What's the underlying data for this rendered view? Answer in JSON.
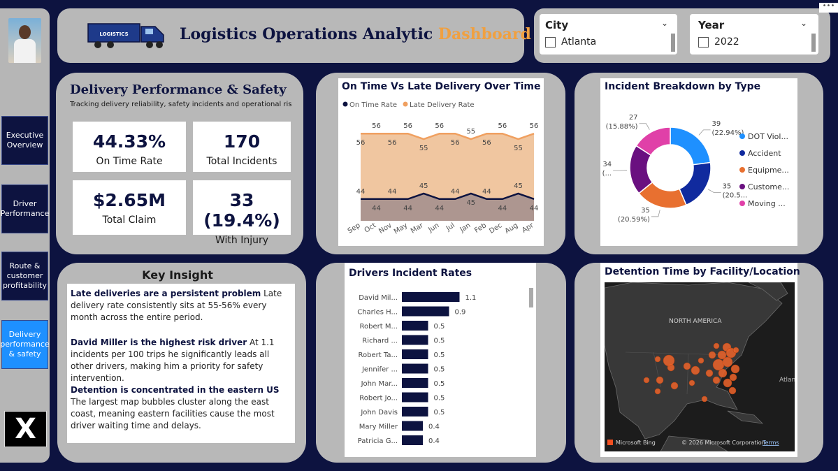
{
  "nav": {
    "items": [
      {
        "label": "Executive Overview",
        "active": false
      },
      {
        "label": "Driver Performance",
        "active": false
      },
      {
        "label": "Route & customer profitability",
        "active": false
      },
      {
        "label": "Delivery performance & safety",
        "active": true
      }
    ],
    "x_logo": "X"
  },
  "header": {
    "truck_text": "LOGISTICS",
    "title_main": "Logistics Operations Analytic",
    "title_accent": "Dashboard",
    "accent_color": "#f0a040"
  },
  "filters": {
    "city": {
      "label": "City",
      "option": "Atlanta"
    },
    "year": {
      "label": "Year",
      "option": "2022"
    }
  },
  "overview": {
    "title": "Delivery Performance & Safety",
    "subtitle": "Tracking delivery reliability, safety incidents and operational ris",
    "kpis": [
      {
        "value": "44.33%",
        "label": "On Time Rate"
      },
      {
        "value": "170",
        "label": "Total Incidents"
      },
      {
        "value": "$2.65M",
        "label": "Total Claim"
      },
      {
        "value": "33 (19.4%)",
        "label": "With Injury"
      }
    ]
  },
  "insights": {
    "title": "Key Insight",
    "items": [
      {
        "bold": "Late deliveries are a persistent problem",
        "text": " Late delivery rate consistently sits at 55-56% every month across the entire period."
      },
      {
        "bold": "David Miller is the highest risk driver",
        "text": " At 1.1 incidents per 100 trips he significantly leads all other drivers, making him a priority for safety intervention."
      },
      {
        "bold": "Detention is concentrated in the eastern US",
        "text": " The largest map bubbles cluster along the east coast, meaning eastern facilities cause the most driver waiting time and delays."
      }
    ]
  },
  "chart_data": [
    {
      "type": "area",
      "title": "On Time Vs Late Delivery Over Time",
      "categories": [
        "Sep",
        "Oct",
        "Nov",
        "May",
        "Mar",
        "Jun",
        "Jul",
        "Jan",
        "Feb",
        "Dec",
        "Aug",
        "Apr"
      ],
      "series": [
        {
          "name": "On Time Rate",
          "color": "#0d1340",
          "values": [
            44,
            44,
            44,
            44,
            45,
            44,
            44,
            45,
            44,
            44,
            45,
            44
          ]
        },
        {
          "name": "Late Delivery Rate",
          "color": "#f0a060",
          "values": [
            56,
            56,
            56,
            56,
            55,
            56,
            56,
            55,
            56,
            56,
            55,
            56
          ]
        }
      ],
      "ylim": [
        0,
        70
      ],
      "legend": "top"
    },
    {
      "type": "pie",
      "title": "Incident Breakdown by Type",
      "categories": [
        "DOT Viol...",
        "Accident",
        "Equipme...",
        "Custome...",
        "Moving ..."
      ],
      "values": [
        39,
        35,
        35,
        34,
        27
      ],
      "colors": [
        "#1e90ff",
        "#102a9e",
        "#e87030",
        "#6a1080",
        "#e040a8"
      ],
      "slice_labels": [
        "39\n(22.94%)",
        "35\n(20.5...",
        "35\n(20.59%)",
        "34\n(...",
        "27\n(15.88%)"
      ],
      "legend": "right"
    },
    {
      "type": "bar",
      "title": "Drivers Incident Rates",
      "categories": [
        "David Mil...",
        "Charles H...",
        "Robert M...",
        "Richard ...",
        "Robert Ta...",
        "Jennifer ...",
        "John Mar...",
        "Robert Jo...",
        "John Davis",
        "Mary Miller",
        "Patricia G..."
      ],
      "values": [
        1.1,
        0.9,
        0.5,
        0.5,
        0.5,
        0.5,
        0.5,
        0.5,
        0.5,
        0.4,
        0.4
      ],
      "value_labels": [
        "1.1",
        "0.9",
        "0.5",
        "0.5",
        "0.5",
        "0.5",
        "0.5",
        "0.5",
        "0.5",
        "0.4",
        "0.4"
      ],
      "color": "#0d1340",
      "xlim": [
        0,
        1.2
      ]
    }
  ],
  "map": {
    "title": "Detention Time by Facility/Location",
    "region_label": "NORTH AMERICA",
    "ocean_label": "Atlan",
    "credit_brand": "Microsoft Bing",
    "credit_copy": "© 2026 Microsoft Corporation",
    "credit_terms": "Terms"
  }
}
